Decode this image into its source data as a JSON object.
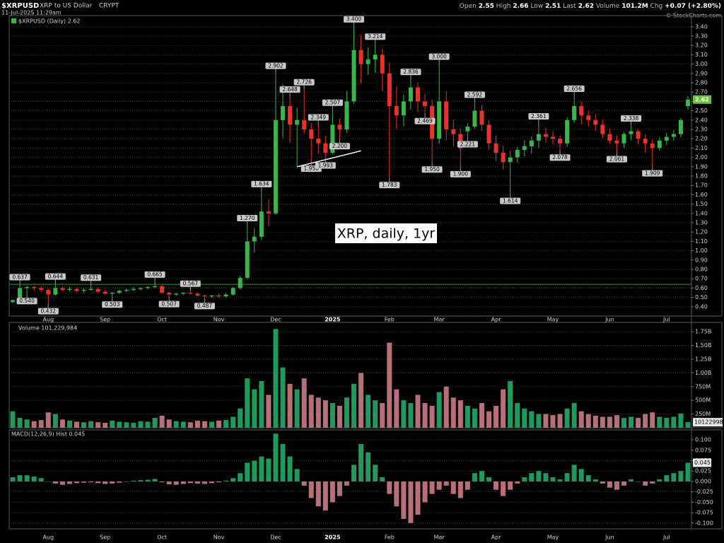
{
  "header": {
    "symbol": "$XRPUSD",
    "name": "XRP to US Dollar",
    "exchange": "CRYPT",
    "timestamp": "11-Jul-2025 11:29am",
    "quote": [
      {
        "label": "Open",
        "value": "2.55"
      },
      {
        "label": "High",
        "value": "2.66"
      },
      {
        "label": "Low",
        "value": "2.51"
      },
      {
        "label": "Last",
        "value": "2.62"
      },
      {
        "label": "Volume",
        "value": "101.2M"
      },
      {
        "label": "Chg",
        "value": "+0.07 (+2.80%)"
      }
    ],
    "copyright": "© StockCharts.com"
  },
  "chart_data": [
    {
      "type": "candlestick",
      "legend": "$XRPUSD (Daily) 2.62",
      "text_annotation": "XRP, daily, 1yr",
      "categories": [
        null,
        null,
        null,
        null,
        null,
        "Aug",
        null,
        null,
        null,
        null,
        null,
        null,
        null,
        "Sep",
        null,
        null,
        null,
        null,
        null,
        null,
        null,
        "Oct",
        null,
        null,
        null,
        null,
        null,
        null,
        null,
        "Nov",
        null,
        null,
        null,
        null,
        null,
        null,
        null,
        "Dec",
        null,
        null,
        null,
        null,
        null,
        null,
        null,
        "2025",
        null,
        null,
        null,
        null,
        null,
        null,
        null,
        "Feb",
        null,
        null,
        null,
        null,
        null,
        null,
        "Mar",
        null,
        null,
        null,
        null,
        null,
        null,
        null,
        "Apr",
        null,
        null,
        null,
        null,
        null,
        null,
        null,
        "May",
        null,
        null,
        null,
        null,
        null,
        null,
        null,
        "Jun",
        null,
        null,
        null,
        null,
        null,
        null,
        null,
        "Jul",
        null,
        null,
        null
      ],
      "open": [
        0.45,
        0.47,
        0.6,
        0.61,
        0.6,
        0.58,
        0.53,
        0.6,
        0.58,
        0.59,
        0.57,
        0.58,
        0.59,
        0.56,
        0.54,
        0.55,
        0.57,
        0.58,
        0.59,
        0.6,
        0.61,
        0.62,
        0.55,
        0.53,
        0.54,
        0.55,
        0.54,
        0.52,
        0.51,
        0.52,
        0.51,
        0.53,
        0.6,
        0.71,
        1.1,
        1.15,
        1.42,
        1.4,
        2.4,
        2.55,
        2.35,
        2.4,
        2.3,
        2.2,
        2.15,
        2.05,
        2.35,
        2.3,
        2.6,
        3.15,
        3.0,
        3.05,
        3.1,
        2.9,
        2.55,
        2.45,
        2.6,
        2.75,
        2.6,
        2.55,
        2.2,
        2.6,
        2.3,
        2.25,
        2.28,
        2.33,
        2.5,
        2.35,
        2.15,
        2.05,
        1.95,
        2.0,
        2.08,
        2.12,
        2.18,
        2.25,
        2.22,
        2.2,
        2.15,
        2.4,
        2.55,
        2.45,
        2.4,
        2.35,
        2.25,
        2.18,
        2.15,
        2.25,
        2.28,
        2.2,
        2.15,
        2.1,
        2.18,
        2.22,
        2.25,
        2.55
      ],
      "high": [
        0.48,
        0.637,
        0.628,
        0.626,
        0.618,
        0.592,
        0.644,
        0.618,
        0.613,
        0.606,
        0.598,
        0.631,
        0.601,
        0.577,
        0.561,
        0.583,
        0.594,
        0.612,
        0.608,
        0.623,
        0.665,
        0.633,
        0.559,
        0.548,
        0.557,
        0.567,
        0.553,
        0.532,
        0.526,
        0.541,
        0.552,
        0.612,
        0.733,
        1.27,
        1.243,
        1.634,
        1.551,
        2.902,
        2.783,
        2.648,
        2.531,
        2.726,
        2.368,
        2.349,
        2.232,
        2.507,
        2.413,
        2.712,
        3.4,
        3.312,
        3.178,
        3.214,
        3.164,
        3.012,
        2.762,
        2.672,
        2.836,
        2.802,
        2.681,
        2.617,
        3.0,
        2.713,
        2.407,
        2.313,
        2.366,
        2.592,
        2.561,
        2.396,
        2.236,
        2.124,
        2.071,
        2.114,
        2.181,
        2.224,
        2.361,
        2.318,
        2.284,
        2.237,
        2.432,
        2.656,
        2.597,
        2.503,
        2.462,
        2.402,
        2.312,
        2.236,
        2.268,
        2.338,
        2.304,
        2.246,
        2.193,
        2.216,
        2.264,
        2.293,
        2.423,
        2.66
      ],
      "low": [
        0.441,
        0.465,
        0.54,
        0.571,
        0.556,
        0.432,
        0.521,
        0.566,
        0.562,
        0.553,
        0.551,
        0.572,
        0.546,
        0.524,
        0.503,
        0.537,
        0.558,
        0.568,
        0.574,
        0.585,
        0.597,
        0.534,
        0.507,
        0.516,
        0.523,
        0.528,
        0.511,
        0.487,
        0.494,
        0.497,
        0.499,
        0.521,
        0.588,
        0.696,
        0.982,
        1.112,
        1.261,
        1.382,
        2.205,
        2.152,
        1.902,
        2.252,
        1.958,
        2.036,
        1.993,
        2.031,
        2.2,
        2.268,
        2.571,
        2.792,
        2.884,
        2.906,
        2.711,
        1.783,
        2.305,
        2.331,
        2.512,
        2.486,
        2.469,
        1.95,
        2.147,
        2.181,
        2.118,
        1.9,
        2.221,
        2.307,
        2.283,
        2.081,
        1.963,
        1.871,
        1.614,
        1.944,
        2.012,
        2.043,
        2.102,
        2.156,
        2.136,
        2.078,
        2.114,
        2.371,
        2.352,
        2.331,
        2.284,
        2.213,
        2.146,
        2.061,
        2.102,
        2.183,
        2.142,
        2.052,
        1.909,
        2.074,
        2.131,
        2.176,
        2.212,
        2.51
      ],
      "close": [
        0.47,
        0.6,
        0.61,
        0.6,
        0.58,
        0.53,
        0.6,
        0.58,
        0.59,
        0.57,
        0.58,
        0.59,
        0.56,
        0.54,
        0.55,
        0.57,
        0.58,
        0.59,
        0.6,
        0.61,
        0.62,
        0.55,
        0.53,
        0.54,
        0.55,
        0.54,
        0.52,
        0.51,
        0.52,
        0.51,
        0.53,
        0.6,
        0.71,
        1.1,
        1.15,
        1.42,
        1.4,
        2.4,
        2.55,
        2.35,
        2.4,
        2.3,
        2.2,
        2.15,
        2.05,
        2.35,
        2.3,
        2.6,
        3.15,
        3.0,
        3.05,
        3.1,
        2.9,
        2.55,
        2.45,
        2.6,
        2.75,
        2.6,
        2.55,
        2.2,
        2.6,
        2.3,
        2.25,
        2.1,
        2.33,
        2.5,
        2.35,
        2.15,
        2.05,
        1.95,
        2.0,
        2.08,
        2.12,
        2.18,
        2.25,
        2.22,
        2.2,
        2.15,
        2.4,
        2.55,
        2.45,
        2.4,
        2.35,
        2.25,
        2.18,
        2.15,
        2.25,
        2.28,
        2.2,
        2.15,
        2.1,
        2.18,
        2.22,
        2.25,
        2.4,
        2.62
      ],
      "up_color": "#3ab54a",
      "down_color": "#e8322b",
      "last_box_color": "#6ebf3a",
      "annotations": [
        {
          "value": 0.637,
          "label": "0.637"
        },
        {
          "value": 0.54,
          "label": "0.540"
        },
        {
          "value": 0.644,
          "label": "0.644"
        },
        {
          "value": 0.432,
          "label": "0.432"
        },
        {
          "value": 0.631,
          "label": "0.631"
        },
        {
          "value": 0.503,
          "label": "0.503"
        },
        {
          "value": 0.665,
          "label": "0.665"
        },
        {
          "value": 0.507,
          "label": "0.507"
        },
        {
          "value": 0.567,
          "label": "0.567"
        },
        {
          "value": 0.487,
          "label": "0.487"
        },
        {
          "value": 1.27,
          "label": "1.270"
        },
        {
          "value": 1.634,
          "label": "1.634"
        },
        {
          "value": 2.902,
          "label": "2.902"
        },
        {
          "value": 2.648,
          "label": "2.648"
        },
        {
          "value": 2.726,
          "label": "2.726"
        },
        {
          "value": 1.958,
          "label": "1.958"
        },
        {
          "value": 2.349,
          "label": "2.349"
        },
        {
          "value": 1.993,
          "label": "1.993"
        },
        {
          "value": 2.507,
          "label": "2.507"
        },
        {
          "value": 2.2,
          "label": "2.200"
        },
        {
          "value": 3.4,
          "label": "3.400"
        },
        {
          "value": 3.214,
          "label": "3.214"
        },
        {
          "value": 1.783,
          "label": "1.783"
        },
        {
          "value": 2.836,
          "label": "2.836"
        },
        {
          "value": 2.469,
          "label": "2.469"
        },
        {
          "value": 3.0,
          "label": "3.000"
        },
        {
          "value": 1.95,
          "label": "1.950"
        },
        {
          "value": 1.9,
          "label": "1.900"
        },
        {
          "value": 2.221,
          "label": "2.221"
        },
        {
          "value": 2.592,
          "label": "2.592"
        },
        {
          "value": 1.614,
          "label": "1.614"
        },
        {
          "value": 2.361,
          "label": "2.361"
        },
        {
          "value": 2.078,
          "label": "2.078"
        },
        {
          "value": 2.656,
          "label": "2.656"
        },
        {
          "value": 2.061,
          "label": "2.061"
        },
        {
          "value": 2.338,
          "label": "2.338"
        },
        {
          "value": 1.909,
          "label": "1.909"
        }
      ],
      "reference_line": {
        "value": 0.64,
        "color": "#1f9e1f"
      },
      "trendline": {
        "start": {
          "index": 40,
          "value": 1.9
        },
        "end": {
          "index": 49,
          "value": 2.07
        },
        "color": "#ffffff"
      },
      "ylim": [
        0.3,
        3.52
      ],
      "yticks": [
        {
          "value": 0.4,
          "label": "0.40"
        },
        {
          "value": 0.5,
          "label": "0.50"
        },
        {
          "value": 0.6,
          "label": "0.60"
        },
        {
          "value": 0.7,
          "label": "0.70"
        },
        {
          "value": 0.8,
          "label": "0.80"
        },
        {
          "value": 0.9,
          "label": "0.90"
        },
        {
          "value": 1.0,
          "label": "1.00"
        },
        {
          "value": 1.1,
          "label": "1.10"
        },
        {
          "value": 1.2,
          "label": "1.20"
        },
        {
          "value": 1.3,
          "label": "1.30"
        },
        {
          "value": 1.4,
          "label": "1.40"
        },
        {
          "value": 1.5,
          "label": "1.50"
        },
        {
          "value": 1.6,
          "label": "1.60"
        },
        {
          "value": 1.7,
          "label": "1.70"
        },
        {
          "value": 1.8,
          "label": "1.80"
        },
        {
          "value": 1.9,
          "label": "1.90"
        },
        {
          "value": 2.0,
          "label": "2.00"
        },
        {
          "value": 2.1,
          "label": "2.10"
        },
        {
          "value": 2.2,
          "label": "2.20"
        },
        {
          "value": 2.3,
          "label": "2.30"
        },
        {
          "value": 2.4,
          "label": "2.40"
        },
        {
          "value": 2.5,
          "label": "2.50"
        },
        {
          "value": 2.6,
          "label": "2.60"
        },
        {
          "value": 2.7,
          "label": "2.70"
        },
        {
          "value": 2.8,
          "label": "2.80"
        },
        {
          "value": 2.9,
          "label": "2.90"
        },
        {
          "value": 3.0,
          "label": "3.00"
        },
        {
          "value": 3.1,
          "label": "3.10"
        },
        {
          "value": 3.2,
          "label": "3.20"
        },
        {
          "value": 3.3,
          "label": "3.30"
        },
        {
          "value": 3.4,
          "label": "3.40"
        }
      ],
      "grid": true
    },
    {
      "type": "bar",
      "title": "Volume 101,229,984",
      "up_color": "#1f9a5c",
      "down_color": "#b86f78",
      "values": [
        300000000,
        180000000,
        150000000,
        120000000,
        140000000,
        280000000,
        250000000,
        150000000,
        130000000,
        110000000,
        100000000,
        120000000,
        100000000,
        90000000,
        130000000,
        110000000,
        100000000,
        90000000,
        120000000,
        110000000,
        180000000,
        220000000,
        150000000,
        120000000,
        110000000,
        100000000,
        130000000,
        120000000,
        110000000,
        130000000,
        140000000,
        200000000,
        350000000,
        900000000,
        700000000,
        850000000,
        600000000,
        1800000000,
        1100000000,
        800000000,
        700000000,
        900000000,
        600000000,
        550000000,
        500000000,
        450000000,
        400000000,
        550000000,
        800000000,
        1000000000,
        600000000,
        500000000,
        450000000,
        1550000000,
        700000000,
        500000000,
        450000000,
        600000000,
        450000000,
        400000000,
        650000000,
        750000000,
        550000000,
        500000000,
        400000000,
        350000000,
        450000000,
        300000000,
        400000000,
        700000000,
        850000000,
        450000000,
        350000000,
        300000000,
        250000000,
        250000000,
        230000000,
        250000000,
        350000000,
        450000000,
        300000000,
        250000000,
        220000000,
        200000000,
        200000000,
        230000000,
        180000000,
        200000000,
        180000000,
        250000000,
        280000000,
        200000000,
        180000000,
        200000000,
        260000000,
        101229984
      ],
      "ylim": [
        0,
        1920000000
      ],
      "yticks": [
        {
          "value": 250000000,
          "label": "250M"
        },
        {
          "value": 500000000,
          "label": "500M"
        },
        {
          "value": 750000000,
          "label": "750M"
        },
        {
          "value": 1000000000,
          "label": "1.00B"
        },
        {
          "value": 1250000000,
          "label": "1.25B"
        },
        {
          "value": 1500000000,
          "label": "1.50B"
        },
        {
          "value": 1750000000,
          "label": "1.75B"
        }
      ],
      "grid": true
    },
    {
      "type": "bar",
      "title": "MACD(12,26,9) Hist 0.045",
      "pos_color": "#1f9a5c",
      "neg_color": "#b86f78",
      "values": [
        0.01,
        0.015,
        0.015,
        0.012,
        0.008,
        0.0,
        -0.005,
        -0.008,
        -0.006,
        -0.004,
        -0.003,
        -0.002,
        -0.004,
        -0.006,
        -0.005,
        -0.003,
        -0.001,
        0.002,
        0.003,
        0.004,
        0.006,
        -0.002,
        -0.007,
        -0.008,
        -0.006,
        -0.004,
        -0.005,
        -0.006,
        -0.004,
        -0.002,
        0.002,
        0.008,
        0.02,
        0.045,
        0.05,
        0.06,
        0.055,
        0.115,
        0.09,
        0.06,
        0.03,
        -0.01,
        -0.04,
        -0.06,
        -0.07,
        -0.05,
        -0.035,
        -0.01,
        0.04,
        0.09,
        0.07,
        0.04,
        0.01,
        -0.03,
        -0.06,
        -0.09,
        -0.1,
        -0.08,
        -0.05,
        -0.03,
        -0.02,
        -0.01,
        -0.03,
        -0.04,
        -0.02,
        0.02,
        0.025,
        0.01,
        -0.02,
        -0.035,
        -0.02,
        -0.005,
        0.01,
        0.02,
        0.025,
        0.02,
        0.01,
        0.005,
        0.02,
        0.04,
        0.03,
        0.015,
        0.005,
        -0.005,
        -0.015,
        -0.02,
        -0.01,
        0.005,
        0.0,
        -0.01,
        -0.005,
        0.005,
        0.015,
        0.02,
        0.025,
        0.045
      ],
      "ylim": [
        -0.114,
        0.124
      ],
      "yticks": [
        {
          "value": 0.1,
          "label": "0.100"
        },
        {
          "value": 0.075,
          "label": "0.075"
        },
        {
          "value": 0.05,
          "label": "0.050"
        },
        {
          "value": 0.025,
          "label": "0.025"
        },
        {
          "value": 0,
          "label": "0.000"
        },
        {
          "value": -0.025,
          "label": "-0.025"
        },
        {
          "value": -0.05,
          "label": "-0.050"
        },
        {
          "value": -0.075,
          "label": "-0.075"
        },
        {
          "value": -0.1,
          "label": "-0.100"
        }
      ],
      "grid": true
    }
  ]
}
